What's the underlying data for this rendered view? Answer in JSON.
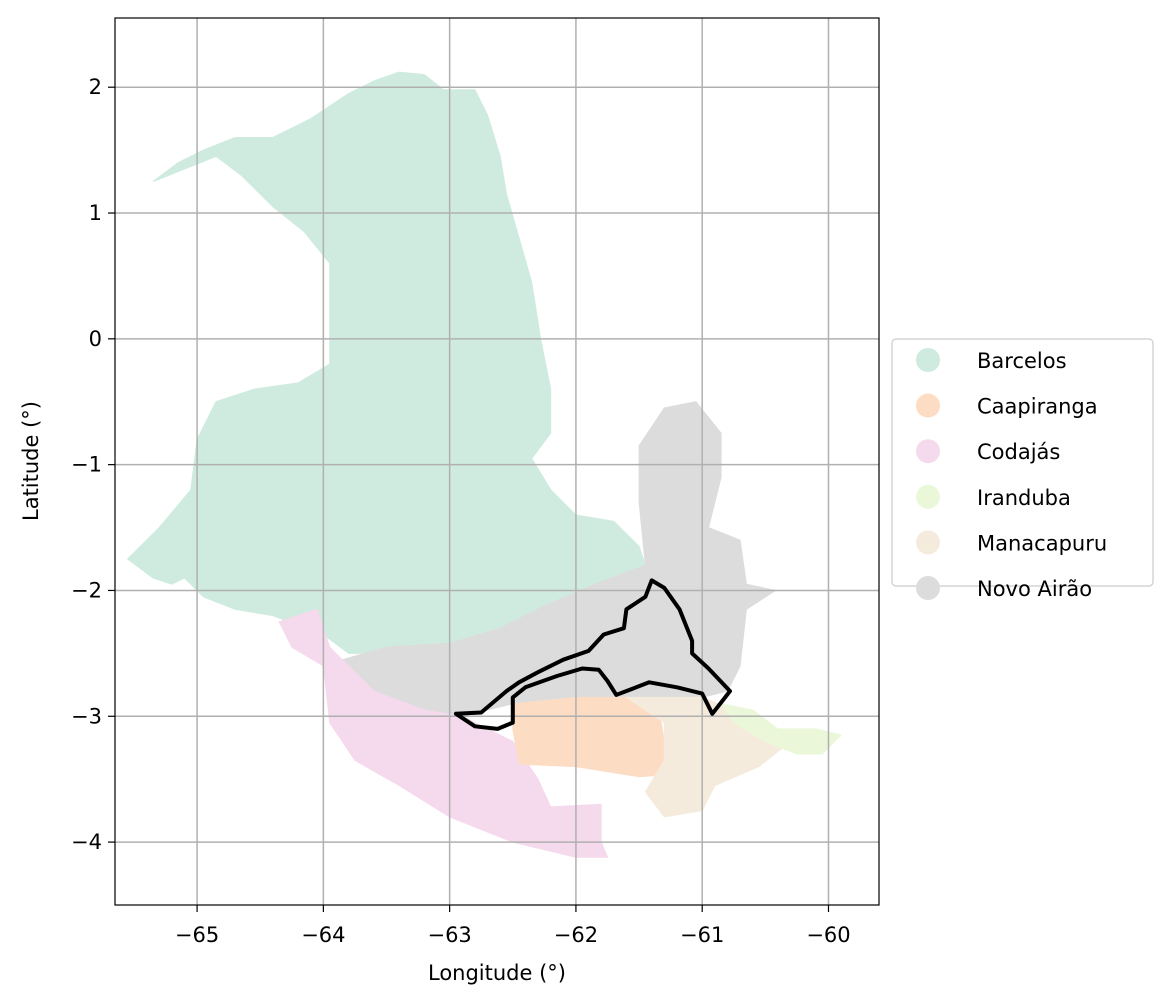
{
  "axes": {
    "xlabel": "Longitude (°)",
    "ylabel": "Latitude (°)",
    "xlim": [
      -65.65,
      -59.6
    ],
    "ylim": [
      -4.5,
      2.55
    ],
    "xticks": [
      -65,
      -64,
      -63,
      -62,
      -61,
      -60
    ],
    "yticks": [
      2,
      1,
      0,
      -1,
      -2,
      -3,
      -4
    ],
    "grid": true
  },
  "legend": {
    "placement": "center-right outside",
    "entries": [
      {
        "label": "Barcelos",
        "color": "#cfebdf"
      },
      {
        "label": "Caapiranga",
        "color": "#fddcc4"
      },
      {
        "label": "Codajás",
        "color": "#f5d9ec"
      },
      {
        "label": "Iranduba",
        "color": "#ebf7d9"
      },
      {
        "label": "Manacapuru",
        "color": "#f5ebdc"
      },
      {
        "label": "Novo Airão",
        "color": "#dcdcdc"
      }
    ]
  },
  "regions": [
    {
      "name": "Barcelos",
      "color": "#cfebdf",
      "coords": [
        [
          -65.35,
          1.25
        ],
        [
          -65.15,
          1.4
        ],
        [
          -64.95,
          1.5
        ],
        [
          -64.7,
          1.6
        ],
        [
          -64.4,
          1.6
        ],
        [
          -64.1,
          1.75
        ],
        [
          -63.8,
          1.95
        ],
        [
          -63.6,
          2.05
        ],
        [
          -63.4,
          2.12
        ],
        [
          -63.2,
          2.1
        ],
        [
          -63.05,
          1.98
        ],
        [
          -62.8,
          1.98
        ],
        [
          -62.7,
          1.78
        ],
        [
          -62.6,
          1.45
        ],
        [
          -62.55,
          1.15
        ],
        [
          -62.45,
          0.8
        ],
        [
          -62.35,
          0.45
        ],
        [
          -62.28,
          0.0
        ],
        [
          -62.2,
          -0.4
        ],
        [
          -62.2,
          -0.75
        ],
        [
          -62.35,
          -0.95
        ],
        [
          -62.2,
          -1.2
        ],
        [
          -62.0,
          -1.4
        ],
        [
          -61.7,
          -1.45
        ],
        [
          -61.5,
          -1.65
        ],
        [
          -61.45,
          -1.8
        ],
        [
          -61.85,
          -1.95
        ],
        [
          -62.2,
          -2.1
        ],
        [
          -62.6,
          -2.3
        ],
        [
          -63.0,
          -2.45
        ],
        [
          -63.4,
          -2.5
        ],
        [
          -63.8,
          -2.5
        ],
        [
          -64.0,
          -2.35
        ],
        [
          -64.4,
          -2.2
        ],
        [
          -64.7,
          -2.15
        ],
        [
          -64.95,
          -2.05
        ],
        [
          -65.1,
          -1.9
        ],
        [
          -65.2,
          -1.95
        ],
        [
          -65.35,
          -1.9
        ],
        [
          -65.55,
          -1.75
        ],
        [
          -65.3,
          -1.5
        ],
        [
          -65.05,
          -1.2
        ],
        [
          -65.0,
          -0.8
        ],
        [
          -64.85,
          -0.5
        ],
        [
          -64.55,
          -0.4
        ],
        [
          -64.2,
          -0.35
        ],
        [
          -63.95,
          -0.2
        ],
        [
          -63.95,
          0.3
        ],
        [
          -63.95,
          0.6
        ],
        [
          -64.15,
          0.85
        ],
        [
          -64.4,
          1.05
        ],
        [
          -64.65,
          1.3
        ],
        [
          -64.85,
          1.45
        ],
        [
          -65.1,
          1.35
        ]
      ]
    },
    {
      "name": "Novo Airão",
      "color": "#dcdcdc",
      "coords": [
        [
          -61.5,
          -1.3
        ],
        [
          -61.5,
          -0.85
        ],
        [
          -61.3,
          -0.55
        ],
        [
          -61.05,
          -0.5
        ],
        [
          -60.85,
          -0.75
        ],
        [
          -60.85,
          -1.1
        ],
        [
          -60.95,
          -1.5
        ],
        [
          -60.7,
          -1.6
        ],
        [
          -60.65,
          -1.95
        ],
        [
          -60.42,
          -2.0
        ],
        [
          -60.65,
          -2.15
        ],
        [
          -60.7,
          -2.6
        ],
        [
          -60.8,
          -2.8
        ],
        [
          -61.0,
          -2.85
        ],
        [
          -61.5,
          -2.85
        ],
        [
          -62.0,
          -2.9
        ],
        [
          -62.5,
          -2.9
        ],
        [
          -62.9,
          -3.0
        ],
        [
          -63.2,
          -2.95
        ],
        [
          -63.6,
          -2.8
        ],
        [
          -63.85,
          -2.55
        ],
        [
          -63.5,
          -2.45
        ],
        [
          -63.0,
          -2.42
        ],
        [
          -62.6,
          -2.3
        ],
        [
          -62.2,
          -2.1
        ],
        [
          -61.85,
          -1.95
        ],
        [
          -61.45,
          -1.8
        ]
      ]
    },
    {
      "name": "Codajás",
      "color": "#f5d9ec",
      "coords": [
        [
          -64.35,
          -2.25
        ],
        [
          -64.05,
          -2.15
        ],
        [
          -63.95,
          -2.45
        ],
        [
          -63.85,
          -2.55
        ],
        [
          -63.6,
          -2.8
        ],
        [
          -63.2,
          -2.95
        ],
        [
          -62.9,
          -3.0
        ],
        [
          -62.5,
          -3.2
        ],
        [
          -62.3,
          -3.5
        ],
        [
          -62.2,
          -3.72
        ],
        [
          -61.8,
          -3.7
        ],
        [
          -61.8,
          -4.0
        ],
        [
          -61.75,
          -4.12
        ],
        [
          -62.0,
          -4.12
        ],
        [
          -62.5,
          -4.0
        ],
        [
          -63.0,
          -3.8
        ],
        [
          -63.4,
          -3.55
        ],
        [
          -63.75,
          -3.35
        ],
        [
          -63.95,
          -3.05
        ],
        [
          -64.0,
          -2.6
        ],
        [
          -64.25,
          -2.45
        ]
      ]
    },
    {
      "name": "Caapiranga",
      "color": "#fddcc4",
      "coords": [
        [
          -62.5,
          -2.9
        ],
        [
          -62.0,
          -2.85
        ],
        [
          -61.6,
          -2.85
        ],
        [
          -61.35,
          -2.9
        ],
        [
          -61.3,
          -3.2
        ],
        [
          -61.1,
          -3.3
        ],
        [
          -61.1,
          -3.45
        ],
        [
          -61.5,
          -3.48
        ],
        [
          -62.0,
          -3.4
        ],
        [
          -62.45,
          -3.38
        ],
        [
          -62.5,
          -3.1
        ]
      ]
    },
    {
      "name": "Manacapuru",
      "color": "#f5ebdc",
      "coords": [
        [
          -61.6,
          -2.85
        ],
        [
          -61.0,
          -2.85
        ],
        [
          -60.75,
          -2.95
        ],
        [
          -60.55,
          -3.1
        ],
        [
          -60.3,
          -3.2
        ],
        [
          -60.55,
          -3.4
        ],
        [
          -60.9,
          -3.55
        ],
        [
          -61.0,
          -3.75
        ],
        [
          -61.3,
          -3.8
        ],
        [
          -61.45,
          -3.6
        ],
        [
          -61.3,
          -3.35
        ],
        [
          -61.3,
          -3.05
        ]
      ]
    },
    {
      "name": "Iranduba",
      "color": "#ebf7d9",
      "coords": [
        [
          -60.85,
          -2.9
        ],
        [
          -60.6,
          -2.95
        ],
        [
          -60.4,
          -3.1
        ],
        [
          -60.1,
          -3.1
        ],
        [
          -59.9,
          -3.15
        ],
        [
          -60.05,
          -3.3
        ],
        [
          -60.25,
          -3.3
        ],
        [
          -60.5,
          -3.2
        ],
        [
          -60.75,
          -3.05
        ]
      ]
    }
  ],
  "outline": {
    "color": "#000000",
    "coords": [
      [
        -62.95,
        -2.98
      ],
      [
        -62.75,
        -2.97
      ],
      [
        -62.55,
        -2.8
      ],
      [
        -62.45,
        -2.73
      ],
      [
        -62.3,
        -2.65
      ],
      [
        -62.1,
        -2.55
      ],
      [
        -61.9,
        -2.48
      ],
      [
        -61.78,
        -2.35
      ],
      [
        -61.62,
        -2.3
      ],
      [
        -61.6,
        -2.15
      ],
      [
        -61.45,
        -2.05
      ],
      [
        -61.4,
        -1.92
      ],
      [
        -61.3,
        -1.98
      ],
      [
        -61.18,
        -2.15
      ],
      [
        -61.08,
        -2.4
      ],
      [
        -61.08,
        -2.5
      ],
      [
        -60.95,
        -2.62
      ],
      [
        -60.78,
        -2.8
      ],
      [
        -60.92,
        -2.98
      ],
      [
        -61.0,
        -2.82
      ],
      [
        -61.2,
        -2.77
      ],
      [
        -61.42,
        -2.73
      ],
      [
        -61.55,
        -2.78
      ],
      [
        -61.68,
        -2.83
      ],
      [
        -61.75,
        -2.72
      ],
      [
        -61.82,
        -2.63
      ],
      [
        -61.95,
        -2.62
      ],
      [
        -62.15,
        -2.68
      ],
      [
        -62.4,
        -2.77
      ],
      [
        -62.5,
        -2.85
      ],
      [
        -62.5,
        -3.05
      ],
      [
        -62.62,
        -3.1
      ],
      [
        -62.8,
        -3.08
      ],
      [
        -62.95,
        -2.98
      ]
    ]
  }
}
